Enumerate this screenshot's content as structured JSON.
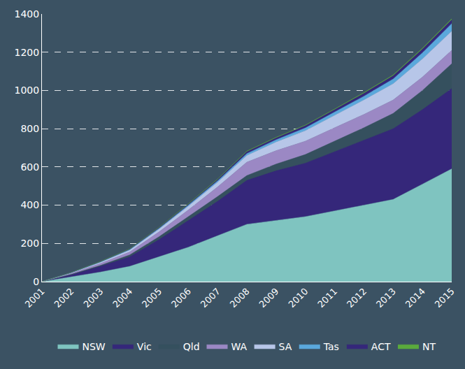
{
  "chart_data": {
    "type": "area",
    "stacked": true,
    "grid": true,
    "legend": "bottom",
    "x": [
      2001,
      2002,
      2003,
      2004,
      2005,
      2006,
      2007,
      2008,
      2009,
      2010,
      2011,
      2012,
      2013,
      2014,
      2015
    ],
    "xlim": [
      2001,
      2015
    ],
    "xticks": [
      2001,
      2002,
      2003,
      2004,
      2005,
      2006,
      2007,
      2008,
      2009,
      2010,
      2011,
      2012,
      2013,
      2014,
      2015
    ],
    "ylim": [
      0,
      1400
    ],
    "yticks": [
      0,
      200,
      400,
      600,
      800,
      1000,
      1200,
      1400
    ],
    "series": [
      {
        "name": "NSW",
        "color": "#7fc4c0",
        "values": [
          0,
          25,
          50,
          80,
          130,
          180,
          240,
          300,
          320,
          340,
          370,
          400,
          430,
          510,
          590
        ]
      },
      {
        "name": "Vic",
        "color": "#35277a",
        "values": [
          0,
          10,
          30,
          50,
          90,
          140,
          180,
          230,
          260,
          280,
          310,
          340,
          370,
          390,
          420
        ]
      },
      {
        "name": "Qld",
        "color": "#35505e",
        "values": [
          0,
          3,
          5,
          10,
          15,
          20,
          25,
          25,
          35,
          45,
          55,
          65,
          80,
          100,
          130
        ]
      },
      {
        "name": "WA",
        "color": "#9b88c4",
        "values": [
          0,
          5,
          10,
          15,
          25,
          35,
          50,
          70,
          70,
          70,
          70,
          70,
          70,
          70,
          70
        ]
      },
      {
        "name": "SA",
        "color": "#b7c6e8",
        "values": [
          0,
          3,
          6,
          10,
          15,
          20,
          25,
          35,
          45,
          55,
          65,
          75,
          85,
          95,
          100
        ]
      },
      {
        "name": "Tas",
        "color": "#5aa8dc",
        "values": [
          0,
          1,
          2,
          3,
          4,
          5,
          7,
          10,
          12,
          14,
          17,
          20,
          25,
          32,
          40
        ]
      },
      {
        "name": "ACT",
        "color": "#35277a",
        "values": [
          0,
          1,
          2,
          3,
          4,
          5,
          7,
          10,
          10,
          12,
          13,
          15,
          17,
          19,
          20
        ]
      },
      {
        "name": "NT",
        "color": "#5aaa3c",
        "values": [
          0,
          0,
          1,
          1,
          1,
          2,
          2,
          3,
          3,
          3,
          3,
          4,
          4,
          5,
          5
        ]
      }
    ]
  }
}
